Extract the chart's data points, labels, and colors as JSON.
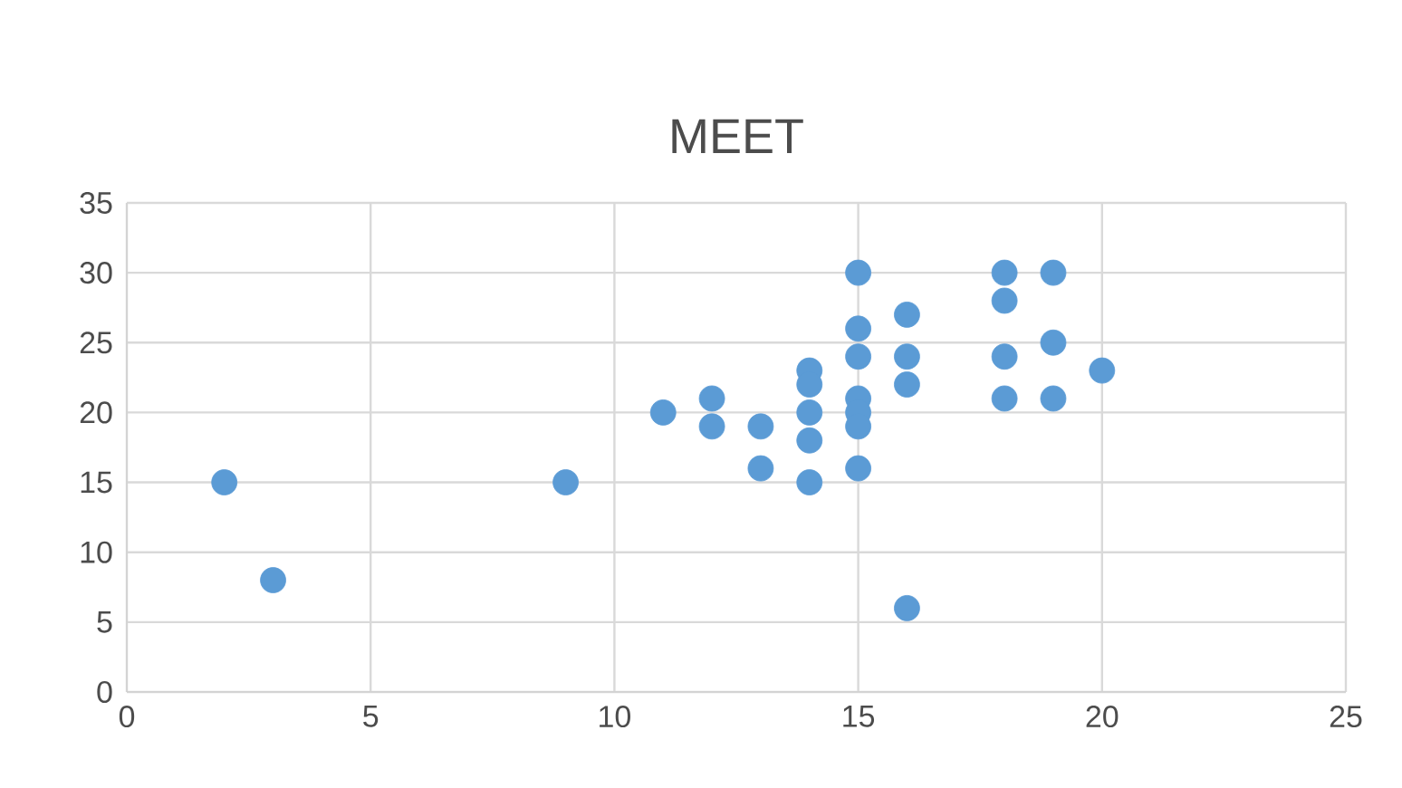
{
  "chart_data": {
    "type": "scatter",
    "title": "MEET",
    "x": [
      2,
      3,
      9,
      11,
      12,
      12,
      13,
      13,
      14,
      14,
      14,
      14,
      14,
      15,
      15,
      15,
      15,
      15,
      15,
      15,
      16,
      16,
      16,
      16,
      18,
      18,
      18,
      18,
      19,
      19,
      19,
      20
    ],
    "values": [
      15,
      8,
      15,
      20,
      21,
      19,
      19,
      16,
      23,
      22,
      20,
      18,
      15,
      30,
      26,
      24,
      21,
      20,
      19,
      16,
      27,
      24,
      22,
      6,
      30,
      28,
      24,
      21,
      30,
      25,
      21,
      23
    ],
    "color": "#5b9bd5",
    "marker": "circle",
    "grid": true,
    "xlim": [
      0,
      25
    ],
    "xticks": [
      0,
      5,
      10,
      15,
      20,
      25
    ],
    "ylim": [
      0,
      35
    ],
    "yticks": [
      0,
      5,
      10,
      15,
      20,
      25,
      30,
      35
    ]
  }
}
